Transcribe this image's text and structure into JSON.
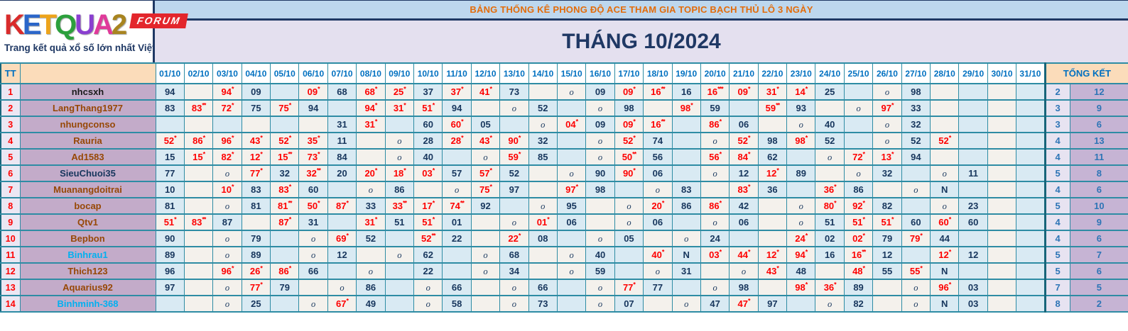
{
  "logo": {
    "letters": [
      {
        "ch": "K",
        "color": "#d92b2b"
      },
      {
        "ch": "E",
        "color": "#2b66c9"
      },
      {
        "ch": "T",
        "color": "#eda41b"
      },
      {
        "ch": "Q",
        "color": "#2ca03c"
      },
      {
        "ch": "U",
        "color": "#8a3fd0"
      },
      {
        "ch": "A",
        "color": "#e03a9a"
      },
      {
        "ch": "2",
        "color": "#a8841f"
      }
    ],
    "forum_label": "FORUM",
    "tagline": "Trang kết quả xổ số lớn nhất Việt Nam"
  },
  "banner": {
    "text": "BẢNG THỐNG KÊ PHONG ĐỘ ACE THAM GIA TOPIC BẠCH THỦ LÔ 3 NGÀY"
  },
  "title": {
    "text": "THÁNG 10/2024"
  },
  "colors": {
    "banner_text": "#e36c0a",
    "title_text": "#1f3864",
    "grid_border": "#2e8ca4",
    "hit_red": "#fe0000",
    "value_navy": "#17365d",
    "summary_blue": "#2e75b6",
    "header_peach": "#fbdcba",
    "name_mauve": "#c3abc9"
  },
  "table": {
    "tt_header": "TT",
    "name_header": "",
    "summary_header": "TỔNG KẾT",
    "dates": [
      "01/10",
      "02/10",
      "03/10",
      "04/10",
      "05/10",
      "06/10",
      "07/10",
      "08/10",
      "09/10",
      "10/10",
      "11/10",
      "12/10",
      "13/10",
      "14/10",
      "15/10",
      "16/10",
      "17/10",
      "18/10",
      "19/10",
      "20/10",
      "21/10",
      "22/10",
      "23/10",
      "24/10",
      "25/10",
      "26/10",
      "27/10",
      "28/10",
      "29/10",
      "30/10",
      "31/10"
    ],
    "rows": [
      {
        "tt": "1",
        "name": "nhcsxh",
        "name_color": "#1a1a1a",
        "cells": [
          "94",
          "",
          "94*",
          "09",
          "",
          "09*",
          "68",
          "68*",
          "25*",
          "37",
          "37*",
          "41*",
          "73",
          "",
          "o",
          "09",
          "09*",
          "16**",
          "16",
          "16***",
          "09*",
          "31*",
          "14*",
          "25",
          "",
          "o",
          "98",
          "",
          "",
          "",
          ""
        ],
        "tk": [
          "2",
          "12"
        ]
      },
      {
        "tt": "2",
        "name": "LangThang1977",
        "name_color": "#974806",
        "cells": [
          "83",
          "83**",
          "72*",
          "75",
          "75*",
          "94",
          "",
          "94*",
          "31*",
          "51*",
          "94",
          "",
          "o",
          "52",
          "",
          "o",
          "98",
          "",
          "98*",
          "59",
          "",
          "59**",
          "93",
          "",
          "o",
          "97*",
          "33",
          "",
          "",
          "",
          ""
        ],
        "tk": [
          "3",
          "9"
        ]
      },
      {
        "tt": "3",
        "name": "nhungconso",
        "name_color": "#974806",
        "cells": [
          "",
          "",
          "",
          "",
          "",
          "",
          "31",
          "31*",
          "",
          "60",
          "60*",
          "05",
          "",
          "o",
          "04*",
          "09",
          "09*",
          "16**",
          "",
          "86*",
          "06",
          "",
          "o",
          "40",
          "",
          "o",
          "32",
          "",
          "",
          "",
          ""
        ],
        "tk": [
          "3",
          "6"
        ]
      },
      {
        "tt": "4",
        "name": "Rauria",
        "name_color": "#974806",
        "cells": [
          "52*",
          "86*",
          "96*",
          "43*",
          "52*",
          "35*",
          "11",
          "",
          "o",
          "28",
          "28*",
          "43*",
          "90*",
          "32",
          "",
          "o",
          "52*",
          "74",
          "",
          "o",
          "52*",
          "98",
          "98*",
          "52",
          "",
          "o",
          "52",
          "52*",
          "",
          "",
          ""
        ],
        "tk": [
          "4",
          "13"
        ]
      },
      {
        "tt": "5",
        "name": "Ad1583",
        "name_color": "#974806",
        "cells": [
          "15",
          "15*",
          "82*",
          "12*",
          "15**",
          "73*",
          "84",
          "",
          "o",
          "40",
          "",
          "o",
          "59*",
          "85",
          "",
          "o",
          "50**",
          "56",
          "",
          "56*",
          "84*",
          "62",
          "",
          "o",
          "72*",
          "13*",
          "94",
          "",
          "",
          "",
          ""
        ],
        "tk": [
          "4",
          "11"
        ]
      },
      {
        "tt": "6",
        "name": "SieuChuoi35",
        "name_color": "#17365d",
        "cells": [
          "77",
          "",
          "o",
          "77*",
          "32",
          "32**",
          "20",
          "20*",
          "18*",
          "03*",
          "57",
          "57*",
          "52",
          "",
          "o",
          "90",
          "90*",
          "06",
          "",
          "o",
          "12",
          "12*",
          "89",
          "",
          "o",
          "32",
          "",
          "o",
          "11",
          "",
          ""
        ],
        "tk": [
          "5",
          "8"
        ]
      },
      {
        "tt": "7",
        "name": "Muanangdoitrai",
        "name_color": "#974806",
        "cells": [
          "10",
          "",
          "10*",
          "83",
          "83*",
          "60",
          "",
          "o",
          "86",
          "",
          "o",
          "75*",
          "97",
          "",
          "97*",
          "98",
          "",
          "o",
          "83",
          "",
          "83*",
          "36",
          "",
          "36*",
          "86",
          "",
          "o",
          "N",
          "",
          "",
          ""
        ],
        "tk": [
          "4",
          "6"
        ]
      },
      {
        "tt": "8",
        "name": "bocap",
        "name_color": "#974806",
        "cells": [
          "81",
          "",
          "o",
          "81",
          "81**",
          "50*",
          "87*",
          "33",
          "33**",
          "17*",
          "74**",
          "92",
          "",
          "o",
          "95",
          "",
          "o",
          "20*",
          "86",
          "86*",
          "42",
          "",
          "o",
          "80*",
          "92*",
          "82",
          "",
          "o",
          "23",
          "",
          ""
        ],
        "tk": [
          "5",
          "10"
        ]
      },
      {
        "tt": "9",
        "name": "Qtv1",
        "name_color": "#974806",
        "cells": [
          "51*",
          "83**",
          "87",
          "",
          "87*",
          "31",
          "",
          "31*",
          "51",
          "51*",
          "01",
          "",
          "o",
          "01*",
          "06",
          "",
          "o",
          "06",
          "",
          "o",
          "06",
          "",
          "o",
          "51",
          "51*",
          "51*",
          "60",
          "60*",
          "60",
          "",
          ""
        ],
        "tk": [
          "4",
          "9"
        ]
      },
      {
        "tt": "10",
        "name": "Bepbon",
        "name_color": "#974806",
        "cells": [
          "90",
          "",
          "o",
          "79",
          "",
          "o",
          "69*",
          "52",
          "",
          "52**",
          "22",
          "",
          "22*",
          "08",
          "",
          "o",
          "05",
          "",
          "o",
          "24",
          "",
          "",
          "24*",
          "02",
          "02*",
          "79",
          "79*",
          "44",
          "",
          "",
          ""
        ],
        "tk": [
          "4",
          "6"
        ]
      },
      {
        "tt": "11",
        "name": "Binhrau1",
        "name_color": "#00b0f0",
        "cells": [
          "89",
          "",
          "o",
          "89",
          "",
          "o",
          "12",
          "",
          "o",
          "62",
          "",
          "o",
          "68",
          "",
          "o",
          "40",
          "",
          "40*",
          "N",
          "03*",
          "44*",
          "12*",
          "94*",
          "16",
          "16**",
          "12",
          "",
          "12*",
          "12",
          "",
          ""
        ],
        "tk": [
          "5",
          "7"
        ]
      },
      {
        "tt": "12",
        "name": "Thich123",
        "name_color": "#974806",
        "cells": [
          "96",
          "",
          "96*",
          "26*",
          "86*",
          "66",
          "",
          "o",
          "",
          "22",
          "",
          "o",
          "34",
          "",
          "o",
          "59",
          "",
          "o",
          "31",
          "",
          "o",
          "43*",
          "48",
          "",
          "48*",
          "55",
          "55*",
          "N",
          "",
          "",
          ""
        ],
        "tk": [
          "5",
          "6"
        ]
      },
      {
        "tt": "13",
        "name": "Aquarius92",
        "name_color": "#974806",
        "cells": [
          "97",
          "",
          "o",
          "77*",
          "79",
          "",
          "o",
          "86",
          "",
          "o",
          "66",
          "",
          "o",
          "66",
          "",
          "o",
          "77*",
          "77",
          "",
          "o",
          "98",
          "",
          "98*",
          "36*",
          "89",
          "",
          "o",
          "96*",
          "03",
          "",
          ""
        ],
        "tk": [
          "7",
          "5"
        ]
      },
      {
        "tt": "14",
        "name": "Binhminh-368",
        "name_color": "#00b0f0",
        "cells": [
          "",
          "",
          "o",
          "25",
          "",
          "o",
          "67*",
          "49",
          "",
          "o",
          "58",
          "",
          "o",
          "73",
          "",
          "o",
          "07",
          "",
          "o",
          "47",
          "47*",
          "97",
          "",
          "o",
          "82",
          "",
          "o",
          "N",
          "03",
          "",
          ""
        ],
        "tk": [
          "8",
          "2"
        ]
      }
    ]
  }
}
